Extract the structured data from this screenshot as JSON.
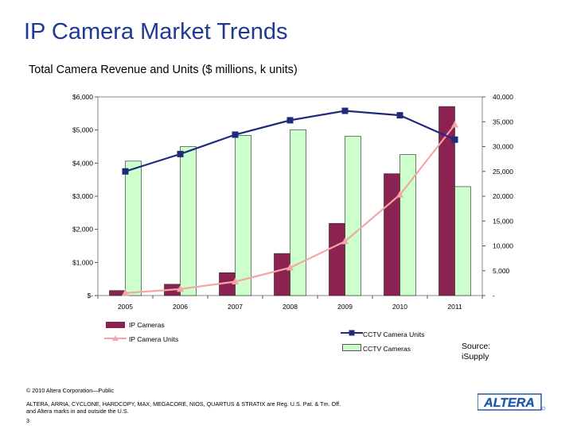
{
  "page": {
    "title": "IP Camera Market Trends",
    "subtitle": "Total Camera Revenue and Units ($ millions, k units)",
    "source_label": "Source:",
    "source_name": "iSupply",
    "copyright": "© 2010 Altera Corporation—Public",
    "trademark_line1": "ALTERA, ARRIA, CYCLONE, HARDCOPY, MAX, MEGACORE, NIOS, QUARTUS & STRATIX are Reg. U.S. Pat. & Tm. Off.",
    "trademark_line2": "and Altera marks in and outside the U.S.",
    "page_number": "3",
    "logo_text": "ALTERA",
    "colors": {
      "title": "#1f3a93",
      "ip_cameras": "#8b2252",
      "cctv_cameras": "#ccffcc",
      "cctv_units": "#1f2a7a",
      "ip_units": "#f4a6a6"
    }
  },
  "chart_data": {
    "type": "bar",
    "title": "Total Camera Revenue and Units ($ millions, k units)",
    "categories": [
      "2005",
      "2006",
      "2007",
      "2008",
      "2009",
      "2010",
      "2011"
    ],
    "left_axis": {
      "range": [
        0,
        6000
      ],
      "tick_labels": [
        "$-",
        "$1,000",
        "$2,000",
        "$3,000",
        "$4,000",
        "$5,000",
        "$6,000"
      ],
      "tick_values": [
        0,
        1000,
        2000,
        3000,
        4000,
        5000,
        6000
      ]
    },
    "right_axis": {
      "range": [
        0,
        40000
      ],
      "tick_labels": [
        "-",
        "5,000",
        "10,000",
        "15,000",
        "20,000",
        "25,000",
        "30,000",
        "35,000",
        "40,000"
      ],
      "tick_values": [
        0,
        5000,
        10000,
        15000,
        20000,
        25000,
        30000,
        35000,
        40000
      ]
    },
    "series": [
      {
        "name": "IP Cameras",
        "kind": "bar",
        "axis": "left",
        "values": [
          150,
          340,
          690,
          1270,
          2180,
          3680,
          5710
        ]
      },
      {
        "name": "CCTV Cameras",
        "kind": "bar",
        "axis": "left",
        "values": [
          4060,
          4500,
          4840,
          5010,
          4810,
          4260,
          3290
        ]
      },
      {
        "name": "CCTV Camera Units",
        "kind": "line",
        "axis": "right",
        "values": [
          25000,
          28500,
          32400,
          35300,
          37200,
          36300,
          31400
        ]
      },
      {
        "name": "IP Camera Units",
        "kind": "line",
        "axis": "right",
        "values": [
          500,
          1300,
          2800,
          5600,
          10900,
          20300,
          34400
        ]
      }
    ],
    "legend": [
      {
        "label": "IP Cameras",
        "position": "bottom-left"
      },
      {
        "label": "IP Camera Units",
        "position": "bottom-left"
      },
      {
        "label": "CCTV Camera Units",
        "position": "bottom-center"
      },
      {
        "label": "CCTV Cameras",
        "position": "bottom-center"
      }
    ]
  }
}
